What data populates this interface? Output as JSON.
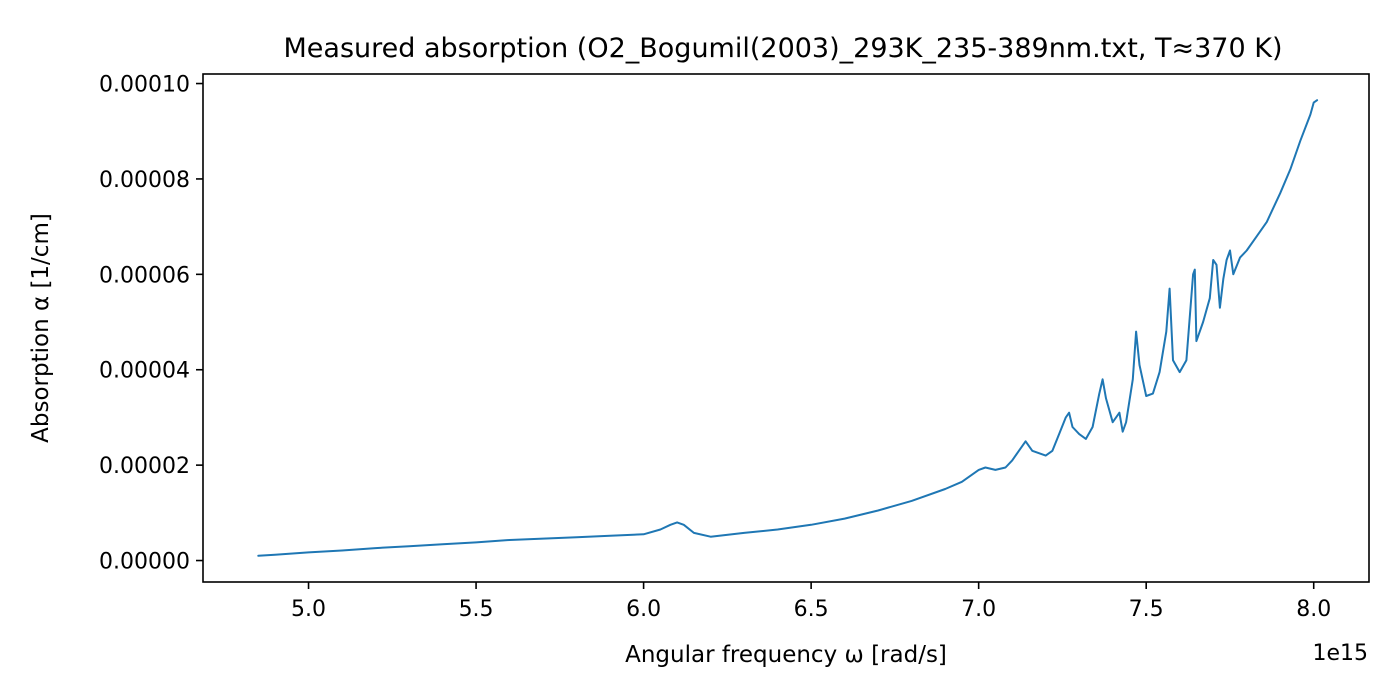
{
  "chart_data": {
    "type": "line",
    "title": "Measured absorption (O2_Bogumil(2003)_293K_235-389nm.txt, T≈370 K)",
    "xlabel": "Angular frequency ω [rad/s]",
    "ylabel": "Absorption α [1/cm]",
    "x_offset_label": "1e15",
    "xlim": [
      4.685,
      8.165
    ],
    "ylim": [
      -4.5e-06,
      0.000102
    ],
    "x_ticks": [
      5.0,
      5.5,
      6.0,
      6.5,
      7.0,
      7.5,
      8.0
    ],
    "x_tick_labels": [
      "5.0",
      "5.5",
      "6.0",
      "6.5",
      "7.0",
      "7.5",
      "8.0"
    ],
    "y_ticks": [
      0,
      2e-05,
      4e-05,
      6e-05,
      8e-05,
      0.0001
    ],
    "y_tick_labels": [
      "0.00000",
      "0.00002",
      "0.00004",
      "0.00006",
      "0.00008",
      "0.00010"
    ],
    "grid": false,
    "color": "#1f77b4",
    "series": [
      {
        "x": [
          4.85,
          4.9,
          5.0,
          5.1,
          5.2,
          5.3,
          5.4,
          5.5,
          5.6,
          5.7,
          5.8,
          5.9,
          6.0,
          6.05,
          6.08,
          6.1,
          6.12,
          6.15,
          6.2,
          6.3,
          6.4,
          6.5,
          6.6,
          6.7,
          6.8,
          6.9,
          6.95,
          7.0,
          7.02,
          7.05,
          7.08,
          7.1,
          7.12,
          7.14,
          7.16,
          7.18,
          7.2,
          7.22,
          7.24,
          7.26,
          7.27,
          7.28,
          7.3,
          7.32,
          7.34,
          7.36,
          7.37,
          7.38,
          7.4,
          7.42,
          7.43,
          7.44,
          7.46,
          7.47,
          7.48,
          7.5,
          7.52,
          7.54,
          7.56,
          7.57,
          7.58,
          7.6,
          7.62,
          7.64,
          7.645,
          7.65,
          7.67,
          7.69,
          7.7,
          7.71,
          7.72,
          7.73,
          7.74,
          7.75,
          7.76,
          7.78,
          7.8,
          7.83,
          7.86,
          7.9,
          7.93,
          7.96,
          7.99,
          8.0,
          8.01
        ],
        "y": [
          1e-06,
          1.2e-06,
          1.7e-06,
          2.1e-06,
          2.6e-06,
          3e-06,
          3.4e-06,
          3.8e-06,
          4.3e-06,
          4.6e-06,
          4.9e-06,
          5.2e-06,
          5.5e-06,
          6.5e-06,
          7.5e-06,
          8e-06,
          7.5e-06,
          5.8e-06,
          5e-06,
          5.8e-06,
          6.5e-06,
          7.5e-06,
          8.8e-06,
          1.05e-05,
          1.25e-05,
          1.5e-05,
          1.65e-05,
          1.9e-05,
          1.95e-05,
          1.9e-05,
          1.95e-05,
          2.1e-05,
          2.3e-05,
          2.5e-05,
          2.3e-05,
          2.25e-05,
          2.2e-05,
          2.3e-05,
          2.65e-05,
          3e-05,
          3.1e-05,
          2.8e-05,
          2.65e-05,
          2.55e-05,
          2.8e-05,
          3.5e-05,
          3.8e-05,
          3.4e-05,
          2.9e-05,
          3.1e-05,
          2.7e-05,
          2.9e-05,
          3.8e-05,
          4.8e-05,
          4.1e-05,
          3.45e-05,
          3.5e-05,
          3.95e-05,
          4.8e-05,
          5.7e-05,
          4.2e-05,
          3.95e-05,
          4.2e-05,
          6e-05,
          6.1e-05,
          4.6e-05,
          5e-05,
          5.5e-05,
          6.3e-05,
          6.2e-05,
          5.3e-05,
          5.9e-05,
          6.3e-05,
          6.5e-05,
          6e-05,
          6.35e-05,
          6.5e-05,
          6.8e-05,
          7.1e-05,
          7.7e-05,
          8.2e-05,
          8.8e-05,
          9.35e-05,
          9.6e-05,
          9.65e-05
        ]
      }
    ]
  }
}
